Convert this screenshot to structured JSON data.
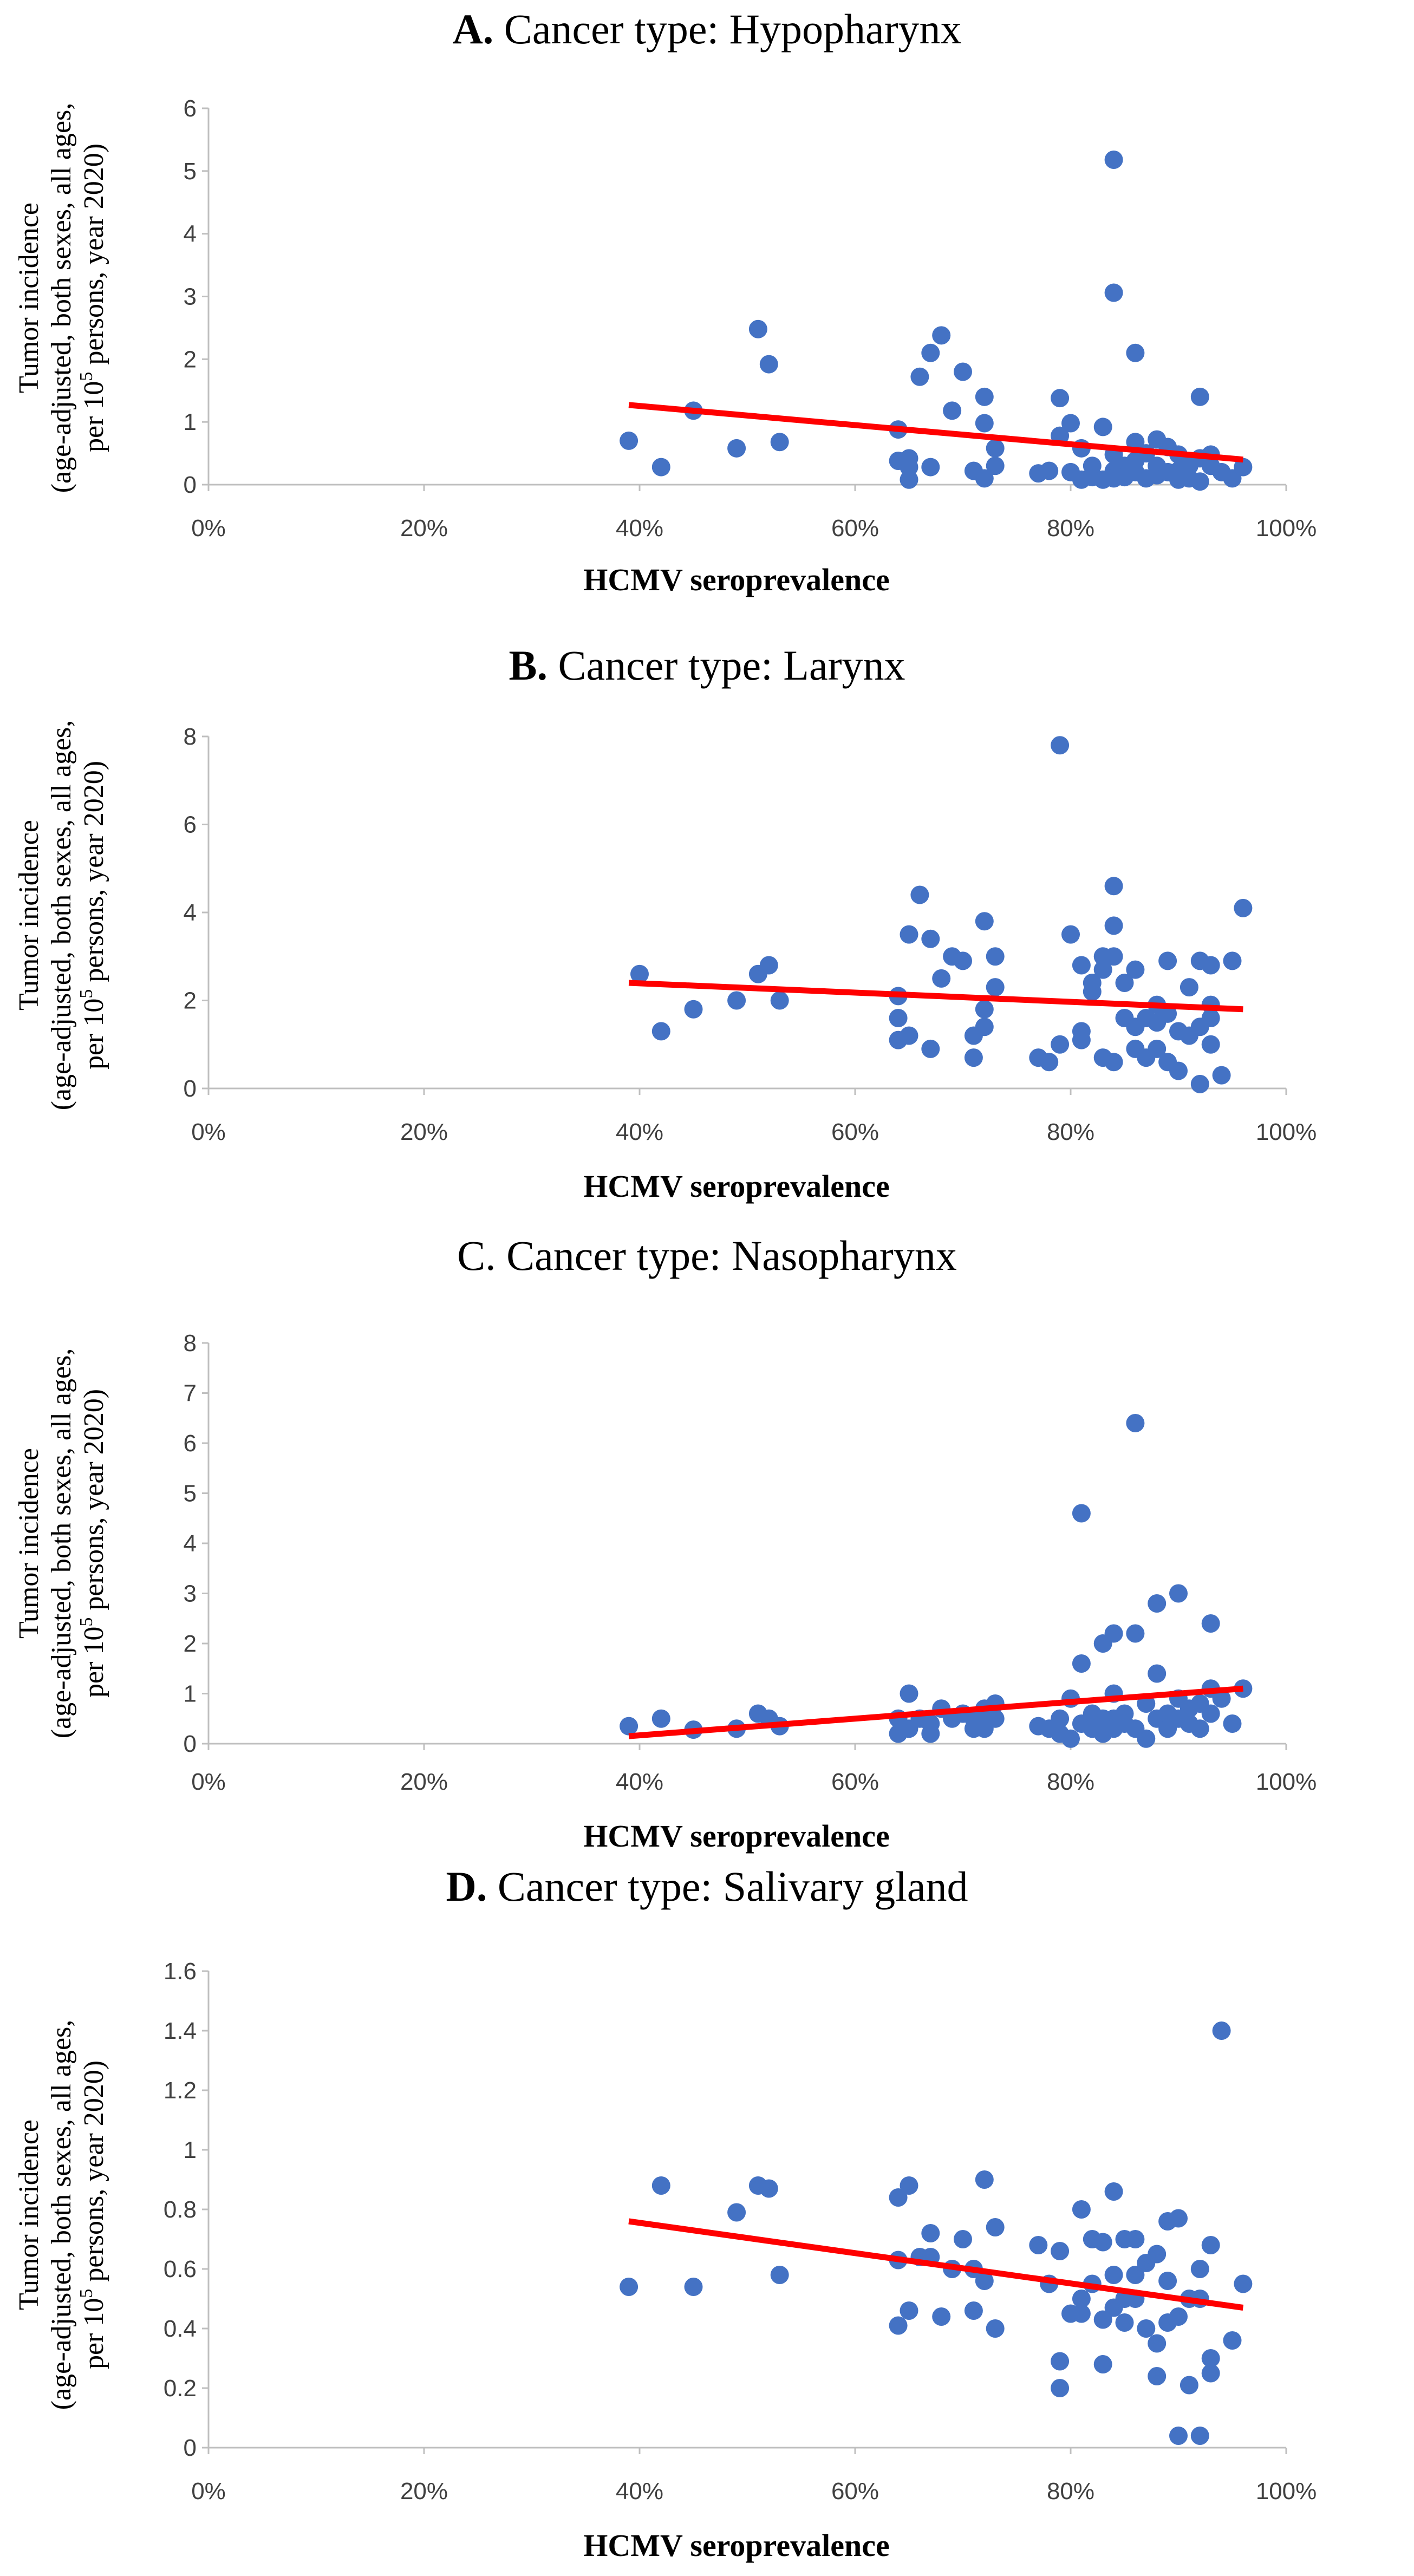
{
  "chart_data": [
    {
      "type": "scatter",
      "title_prefix": "A.",
      "title": "Cancer type: Hypopharynx",
      "xlabel": "HCMV seroprevalence",
      "ylabel_line1": "Tumor incidence",
      "ylabel_line2": "(age-adjusted, both sexes, all ages,",
      "ylabel_line3_pre": "per 10",
      "ylabel_line3_sup": "5",
      "ylabel_line3_post": " persons, year 2020)",
      "xlim": [
        0,
        100
      ],
      "ylim": [
        0,
        6
      ],
      "xticks": [
        "0%",
        "20%",
        "40%",
        "60%",
        "80%",
        "100%"
      ],
      "yticks": [
        "0",
        "1",
        "2",
        "3",
        "4",
        "5",
        "6"
      ],
      "trend": {
        "x": [
          39,
          96
        ],
        "y": [
          1.27,
          0.4
        ]
      },
      "point_color": "#4472c4",
      "trend_color": "#ff0000",
      "points": [
        [
          39,
          0.7
        ],
        [
          42,
          0.28
        ],
        [
          45,
          1.18
        ],
        [
          49,
          0.58
        ],
        [
          51,
          2.48
        ],
        [
          52,
          1.92
        ],
        [
          53,
          0.68
        ],
        [
          64,
          0.88
        ],
        [
          64,
          0.38
        ],
        [
          65,
          0.28
        ],
        [
          65,
          0.42
        ],
        [
          65,
          0.08
        ],
        [
          66,
          1.72
        ],
        [
          67,
          2.1
        ],
        [
          67,
          0.28
        ],
        [
          68,
          2.38
        ],
        [
          69,
          1.18
        ],
        [
          70,
          1.8
        ],
        [
          71,
          0.22
        ],
        [
          72,
          1.4
        ],
        [
          72,
          0.98
        ],
        [
          72,
          0.1
        ],
        [
          73,
          0.58
        ],
        [
          73,
          0.3
        ],
        [
          77,
          0.18
        ],
        [
          78,
          0.22
        ],
        [
          79,
          1.38
        ],
        [
          79,
          0.78
        ],
        [
          80,
          0.98
        ],
        [
          80,
          0.2
        ],
        [
          81,
          0.58
        ],
        [
          81,
          0.08
        ],
        [
          82,
          0.3
        ],
        [
          82,
          0.12
        ],
        [
          83,
          0.92
        ],
        [
          83,
          0.08
        ],
        [
          84,
          5.18
        ],
        [
          84,
          3.06
        ],
        [
          84,
          0.48
        ],
        [
          84,
          0.22
        ],
        [
          84,
          0.1
        ],
        [
          85,
          0.3
        ],
        [
          85,
          0.12
        ],
        [
          86,
          2.1
        ],
        [
          86,
          0.68
        ],
        [
          86,
          0.38
        ],
        [
          86,
          0.2
        ],
        [
          87,
          0.5
        ],
        [
          87,
          0.1
        ],
        [
          88,
          0.72
        ],
        [
          88,
          0.3
        ],
        [
          88,
          0.15
        ],
        [
          89,
          0.6
        ],
        [
          89,
          0.2
        ],
        [
          90,
          0.48
        ],
        [
          90,
          0.22
        ],
        [
          90,
          0.08
        ],
        [
          91,
          0.3
        ],
        [
          91,
          0.1
        ],
        [
          92,
          1.4
        ],
        [
          92,
          0.42
        ],
        [
          92,
          0.05
        ],
        [
          93,
          0.48
        ],
        [
          93,
          0.3
        ],
        [
          94,
          0.2
        ],
        [
          95,
          0.1
        ],
        [
          96,
          0.28
        ]
      ]
    },
    {
      "type": "scatter",
      "title_prefix": "B.",
      "title": "Cancer type: Larynx",
      "xlabel": "HCMV seroprevalence",
      "ylabel_line1": "Tumor incidence",
      "ylabel_line2": "(age-adjusted, both sexes, all ages,",
      "ylabel_line3_pre": "per 10",
      "ylabel_line3_sup": "5",
      "ylabel_line3_post": " persons, year 2020)",
      "xlim": [
        0,
        100
      ],
      "ylim": [
        0,
        8
      ],
      "xticks": [
        "0%",
        "20%",
        "40%",
        "60%",
        "80%",
        "100%"
      ],
      "yticks": [
        "0",
        "2",
        "4",
        "6",
        "8"
      ],
      "trend": {
        "x": [
          39,
          96
        ],
        "y": [
          2.4,
          1.8
        ]
      },
      "point_color": "#4472c4",
      "trend_color": "#ff0000",
      "points": [
        [
          40,
          2.6
        ],
        [
          42,
          1.3
        ],
        [
          45,
          1.8
        ],
        [
          49,
          2.0
        ],
        [
          51,
          2.6
        ],
        [
          52,
          2.8
        ],
        [
          53,
          2.0
        ],
        [
          64,
          2.1
        ],
        [
          64,
          1.6
        ],
        [
          64,
          1.1
        ],
        [
          65,
          3.5
        ],
        [
          65,
          1.2
        ],
        [
          66,
          4.4
        ],
        [
          67,
          3.4
        ],
        [
          67,
          0.9
        ],
        [
          68,
          2.5
        ],
        [
          69,
          3.0
        ],
        [
          70,
          2.9
        ],
        [
          71,
          1.2
        ],
        [
          71,
          0.7
        ],
        [
          72,
          3.8
        ],
        [
          72,
          1.8
        ],
        [
          72,
          1.4
        ],
        [
          73,
          3.0
        ],
        [
          73,
          2.3
        ],
        [
          77,
          0.7
        ],
        [
          78,
          0.6
        ],
        [
          79,
          7.8
        ],
        [
          79,
          1.0
        ],
        [
          80,
          3.5
        ],
        [
          81,
          2.8
        ],
        [
          81,
          1.3
        ],
        [
          81,
          1.1
        ],
        [
          82,
          2.4
        ],
        [
          82,
          2.2
        ],
        [
          83,
          3.0
        ],
        [
          83,
          2.7
        ],
        [
          83,
          0.7
        ],
        [
          84,
          4.6
        ],
        [
          84,
          3.7
        ],
        [
          84,
          3.0
        ],
        [
          84,
          0.6
        ],
        [
          85,
          2.4
        ],
        [
          85,
          1.6
        ],
        [
          86,
          2.7
        ],
        [
          86,
          1.4
        ],
        [
          86,
          0.9
        ],
        [
          87,
          1.6
        ],
        [
          87,
          0.7
        ],
        [
          88,
          1.9
        ],
        [
          88,
          1.5
        ],
        [
          88,
          0.9
        ],
        [
          89,
          2.9
        ],
        [
          89,
          1.7
        ],
        [
          89,
          0.6
        ],
        [
          90,
          1.3
        ],
        [
          90,
          0.4
        ],
        [
          91,
          2.3
        ],
        [
          91,
          1.2
        ],
        [
          92,
          2.9
        ],
        [
          92,
          1.4
        ],
        [
          92,
          0.1
        ],
        [
          93,
          2.8
        ],
        [
          93,
          1.9
        ],
        [
          93,
          1.0
        ],
        [
          93,
          1.6
        ],
        [
          94,
          0.3
        ],
        [
          95,
          2.9
        ],
        [
          96,
          4.1
        ]
      ]
    },
    {
      "type": "scatter",
      "title_prefix": "C.",
      "title": "Cancer type: Nasopharynx",
      "xlabel": "HCMV seroprevalence",
      "ylabel_line1": "Tumor incidence",
      "ylabel_line2": "(age-adjusted, both sexes, all ages,",
      "ylabel_line3_pre": "per 10",
      "ylabel_line3_sup": "5",
      "ylabel_line3_post": " persons, year 2020)",
      "xlim": [
        0,
        100
      ],
      "ylim": [
        0,
        8
      ],
      "xticks": [
        "0%",
        "20%",
        "40%",
        "60%",
        "80%",
        "100%"
      ],
      "yticks": [
        "0",
        "1",
        "2",
        "3",
        "4",
        "5",
        "6",
        "7",
        "8"
      ],
      "trend": {
        "x": [
          39,
          96
        ],
        "y": [
          0.15,
          1.1
        ]
      },
      "point_color": "#4472c4",
      "trend_color": "#ff0000",
      "points": [
        [
          39,
          0.35
        ],
        [
          42,
          0.5
        ],
        [
          45,
          0.28
        ],
        [
          49,
          0.3
        ],
        [
          51,
          0.6
        ],
        [
          52,
          0.5
        ],
        [
          53,
          0.35
        ],
        [
          64,
          0.5
        ],
        [
          64,
          0.2
        ],
        [
          65,
          1.0
        ],
        [
          65,
          0.3
        ],
        [
          66,
          0.5
        ],
        [
          67,
          0.4
        ],
        [
          67,
          0.2
        ],
        [
          68,
          0.7
        ],
        [
          69,
          0.5
        ],
        [
          70,
          0.6
        ],
        [
          71,
          0.3
        ],
        [
          71,
          0.5
        ],
        [
          72,
          0.7
        ],
        [
          72,
          0.35
        ],
        [
          72,
          0.3
        ],
        [
          73,
          0.8
        ],
        [
          73,
          0.5
        ],
        [
          77,
          0.35
        ],
        [
          78,
          0.3
        ],
        [
          79,
          0.5
        ],
        [
          79,
          0.2
        ],
        [
          80,
          0.9
        ],
        [
          80,
          0.1
        ],
        [
          81,
          4.6
        ],
        [
          81,
          1.6
        ],
        [
          81,
          0.4
        ],
        [
          82,
          0.6
        ],
        [
          82,
          0.3
        ],
        [
          83,
          2.0
        ],
        [
          83,
          0.5
        ],
        [
          83,
          0.2
        ],
        [
          84,
          2.2
        ],
        [
          84,
          1.0
        ],
        [
          84,
          0.5
        ],
        [
          84,
          0.3
        ],
        [
          85,
          0.6
        ],
        [
          85,
          0.4
        ],
        [
          86,
          6.4
        ],
        [
          86,
          2.2
        ],
        [
          86,
          0.3
        ],
        [
          87,
          0.8
        ],
        [
          87,
          0.1
        ],
        [
          88,
          2.8
        ],
        [
          88,
          1.4
        ],
        [
          88,
          0.5
        ],
        [
          89,
          0.6
        ],
        [
          89,
          0.3
        ],
        [
          90,
          3.0
        ],
        [
          90,
          0.9
        ],
        [
          90,
          0.5
        ],
        [
          91,
          0.4
        ],
        [
          91,
          0.7
        ],
        [
          92,
          0.3
        ],
        [
          92,
          0.8
        ],
        [
          93,
          2.4
        ],
        [
          93,
          1.1
        ],
        [
          93,
          0.6
        ],
        [
          94,
          0.9
        ],
        [
          95,
          0.4
        ],
        [
          96,
          1.1
        ]
      ]
    },
    {
      "type": "scatter",
      "title_prefix": "D.",
      "title": "Cancer type: Salivary gland",
      "xlabel": "HCMV seroprevalence",
      "ylabel_line1": "Tumor incidence",
      "ylabel_line2": "(age-adjusted, both sexes, all ages,",
      "ylabel_line3_pre": "per 10",
      "ylabel_line3_sup": "5",
      "ylabel_line3_post": " persons, year 2020)",
      "xlim": [
        0,
        100
      ],
      "ylim": [
        0,
        1.6
      ],
      "xticks": [
        "0%",
        "20%",
        "40%",
        "60%",
        "80%",
        "100%"
      ],
      "yticks": [
        "0",
        "0.2",
        "0.4",
        "0.6",
        "0.8",
        "1",
        "1.2",
        "1.4",
        "1.6"
      ],
      "trend": {
        "x": [
          39,
          96
        ],
        "y": [
          0.76,
          0.47
        ]
      },
      "point_color": "#4472c4",
      "trend_color": "#ff0000",
      "points": [
        [
          39,
          0.54
        ],
        [
          42,
          0.88
        ],
        [
          45,
          0.54
        ],
        [
          49,
          0.79
        ],
        [
          51,
          0.88
        ],
        [
          52,
          0.87
        ],
        [
          53,
          0.58
        ],
        [
          64,
          0.84
        ],
        [
          64,
          0.63
        ],
        [
          64,
          0.41
        ],
        [
          65,
          0.88
        ],
        [
          65,
          0.46
        ],
        [
          66,
          0.64
        ],
        [
          67,
          0.72
        ],
        [
          67,
          0.64
        ],
        [
          68,
          0.44
        ],
        [
          69,
          0.6
        ],
        [
          70,
          0.7
        ],
        [
          71,
          0.6
        ],
        [
          71,
          0.46
        ],
        [
          72,
          0.9
        ],
        [
          72,
          0.56
        ],
        [
          73,
          0.74
        ],
        [
          73,
          0.4
        ],
        [
          77,
          0.68
        ],
        [
          78,
          0.55
        ],
        [
          79,
          0.66
        ],
        [
          79,
          0.29
        ],
        [
          79,
          0.2
        ],
        [
          80,
          0.45
        ],
        [
          81,
          0.8
        ],
        [
          81,
          0.5
        ],
        [
          81,
          0.45
        ],
        [
          82,
          0.7
        ],
        [
          82,
          0.55
        ],
        [
          83,
          0.69
        ],
        [
          83,
          0.43
        ],
        [
          83,
          0.28
        ],
        [
          84,
          0.86
        ],
        [
          84,
          0.58
        ],
        [
          84,
          0.47
        ],
        [
          85,
          0.7
        ],
        [
          85,
          0.5
        ],
        [
          85,
          0.42
        ],
        [
          86,
          0.7
        ],
        [
          86,
          0.58
        ],
        [
          86,
          0.5
        ],
        [
          87,
          0.62
        ],
        [
          87,
          0.4
        ],
        [
          88,
          0.65
        ],
        [
          88,
          0.35
        ],
        [
          88,
          0.24
        ],
        [
          89,
          0.56
        ],
        [
          89,
          0.42
        ],
        [
          89,
          0.76
        ],
        [
          90,
          0.77
        ],
        [
          90,
          0.44
        ],
        [
          90,
          0.04
        ],
        [
          91,
          0.5
        ],
        [
          91,
          0.21
        ],
        [
          92,
          0.6
        ],
        [
          92,
          0.5
        ],
        [
          92,
          0.04
        ],
        [
          93,
          0.68
        ],
        [
          93,
          0.3
        ],
        [
          93,
          0.25
        ],
        [
          94,
          1.4
        ],
        [
          95,
          0.36
        ],
        [
          96,
          0.55
        ]
      ]
    }
  ]
}
